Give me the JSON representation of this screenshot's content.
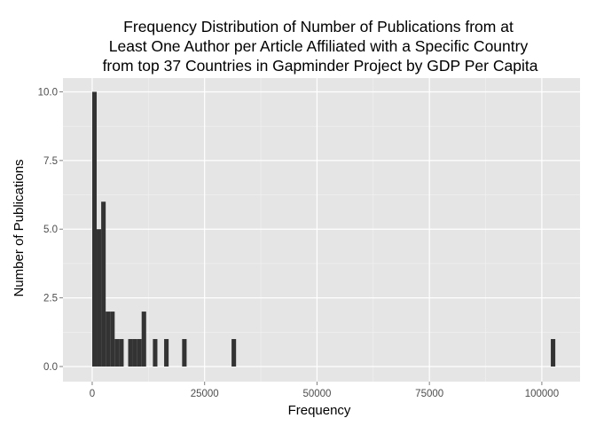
{
  "chart_data": {
    "type": "bar",
    "title_lines": [
      "Frequency Distribution of Number of Publications from at",
      "Least One Author per Article Affiliated with a Specific Country",
      "from top 37 Countries in Gapminder Project by GDP Per Capita"
    ],
    "xlabel": "Frequency",
    "ylabel": "Number of Publications",
    "xlim": [
      -6500,
      108500
    ],
    "ylim": [
      -0.55,
      10.5
    ],
    "x_ticks": [
      0,
      25000,
      50000,
      75000,
      100000
    ],
    "x_tick_labels": [
      "0",
      "25000",
      "50000",
      "75000",
      "100000"
    ],
    "y_ticks": [
      0.0,
      2.5,
      5.0,
      7.5,
      10.0
    ],
    "y_tick_labels": [
      "0.0",
      "2.5",
      "5.0",
      "7.5",
      "10.0"
    ],
    "bin_width": 1000,
    "bins": [
      {
        "x_start": 0,
        "count": 10
      },
      {
        "x_start": 1000,
        "count": 5
      },
      {
        "x_start": 2000,
        "count": 6
      },
      {
        "x_start": 3000,
        "count": 2
      },
      {
        "x_start": 4000,
        "count": 2
      },
      {
        "x_start": 5000,
        "count": 1
      },
      {
        "x_start": 6000,
        "count": 1
      },
      {
        "x_start": 8000,
        "count": 1
      },
      {
        "x_start": 9000,
        "count": 1
      },
      {
        "x_start": 10000,
        "count": 1
      },
      {
        "x_start": 11000,
        "count": 2
      },
      {
        "x_start": 13500,
        "count": 1
      },
      {
        "x_start": 16000,
        "count": 1
      },
      {
        "x_start": 20000,
        "count": 1
      },
      {
        "x_start": 31000,
        "count": 1
      },
      {
        "x_start": 102000,
        "count": 1
      }
    ],
    "grid": true,
    "colors": {
      "panel_background": "#e5e5e5",
      "grid_major": "#ffffff",
      "grid_minor": "#f2f2f2",
      "bar_fill": "#333333"
    }
  }
}
